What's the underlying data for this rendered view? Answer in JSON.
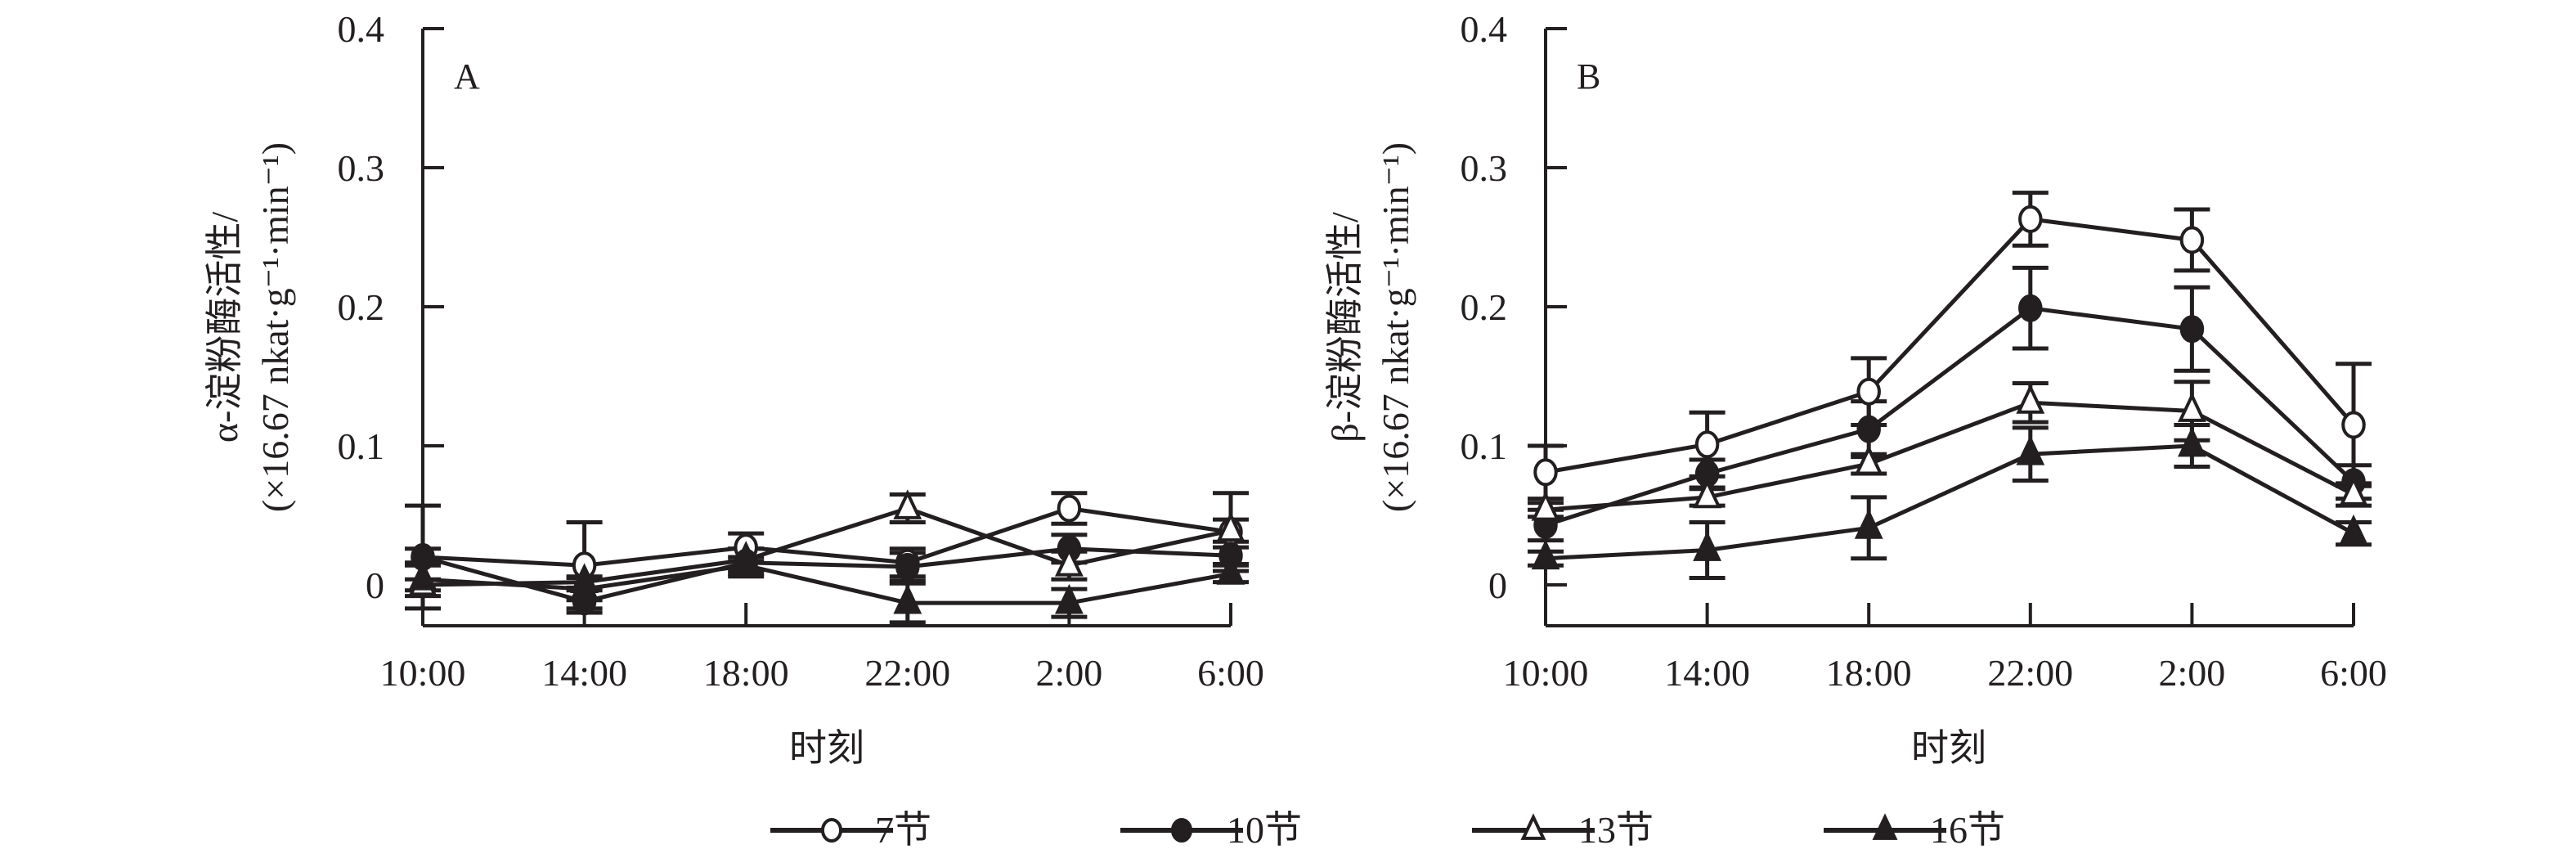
{
  "chart_data": [
    {
      "type": "line",
      "panel_label": "A",
      "categories": [
        "10:00",
        "14:00",
        "18:00",
        "22:00",
        "2:00",
        "6:00"
      ],
      "xlabel": "时刻",
      "ylabel_line1": "α-淀粉酶活性/",
      "ylabel_line2": "(×16.67 nkat·g⁻¹·min⁻¹)",
      "ylim": [
        -0.03,
        0.4
      ],
      "yticks": [
        0,
        0.1,
        0.2,
        0.3,
        0.4
      ],
      "ytick_labels": [
        "0",
        "0.1",
        "0.2",
        "0.3",
        "0.4"
      ],
      "grid": false,
      "series": [
        {
          "name": "7节",
          "marker": "open-circle",
          "values": [
            0.02,
            0.014,
            0.027,
            0.016,
            0.055,
            0.038
          ],
          "errors": [
            0.037,
            0.031,
            0.01,
            0.01,
            0.011,
            0.028
          ]
        },
        {
          "name": "10节",
          "marker": "filled-circle",
          "values": [
            0.02,
            -0.012,
            0.016,
            0.013,
            0.026,
            0.021
          ],
          "errors": [
            0.006,
            0.008,
            0.01,
            0.01,
            0.01,
            0.006
          ]
        },
        {
          "name": "13节",
          "marker": "open-triangle",
          "values": [
            0.0,
            0.002,
            0.018,
            0.055,
            0.014,
            0.039
          ],
          "errors": [
            0.004,
            0.004,
            0.008,
            0.01,
            0.01,
            0.008
          ]
        },
        {
          "name": "16节",
          "marker": "filled-triangle",
          "values": [
            0.004,
            -0.003,
            0.014,
            -0.013,
            -0.013,
            0.008
          ],
          "errors": [
            0.012,
            0.008,
            0.006,
            0.014,
            0.01,
            0.006
          ]
        }
      ]
    },
    {
      "type": "line",
      "panel_label": "B",
      "categories": [
        "10:00",
        "14:00",
        "18:00",
        "22:00",
        "2:00",
        "6:00"
      ],
      "xlabel": "时刻",
      "ylabel_line1": "β-淀粉酶活性/",
      "ylabel_line2": "(×16.67 nkat·g⁻¹·min⁻¹)",
      "ylim": [
        -0.03,
        0.4
      ],
      "yticks": [
        0,
        0.1,
        0.2,
        0.3,
        0.4
      ],
      "ytick_labels": [
        "0",
        "0.1",
        "0.2",
        "0.3",
        "0.4"
      ],
      "grid": false,
      "series": [
        {
          "name": "7节",
          "marker": "open-circle",
          "values": [
            0.081,
            0.101,
            0.139,
            0.263,
            0.248,
            0.115
          ],
          "errors": [
            0.019,
            0.023,
            0.024,
            0.019,
            0.022,
            0.044
          ]
        },
        {
          "name": "10节",
          "marker": "filled-circle",
          "values": [
            0.043,
            0.08,
            0.112,
            0.199,
            0.184,
            0.074
          ],
          "errors": [
            0.011,
            0.01,
            0.02,
            0.029,
            0.03,
            0.012
          ]
        },
        {
          "name": "13节",
          "marker": "open-triangle",
          "values": [
            0.054,
            0.063,
            0.087,
            0.131,
            0.125,
            0.065
          ],
          "errors": [
            0.005,
            0.006,
            0.007,
            0.014,
            0.021,
            0.008
          ]
        },
        {
          "name": "16节",
          "marker": "filled-triangle",
          "values": [
            0.019,
            0.025,
            0.041,
            0.094,
            0.1,
            0.037
          ],
          "errors": [
            0.005,
            0.02,
            0.022,
            0.019,
            0.015,
            0.008
          ]
        }
      ]
    }
  ],
  "legend": {
    "placement": "bottom-center",
    "items": [
      {
        "label": "7节",
        "marker": "open-circle"
      },
      {
        "label": "10节",
        "marker": "filled-circle"
      },
      {
        "label": "13节",
        "marker": "open-triangle"
      },
      {
        "label": "16节",
        "marker": "filled-triangle"
      }
    ]
  },
  "colors": {
    "ink": "#231f20",
    "background": "#ffffff"
  }
}
